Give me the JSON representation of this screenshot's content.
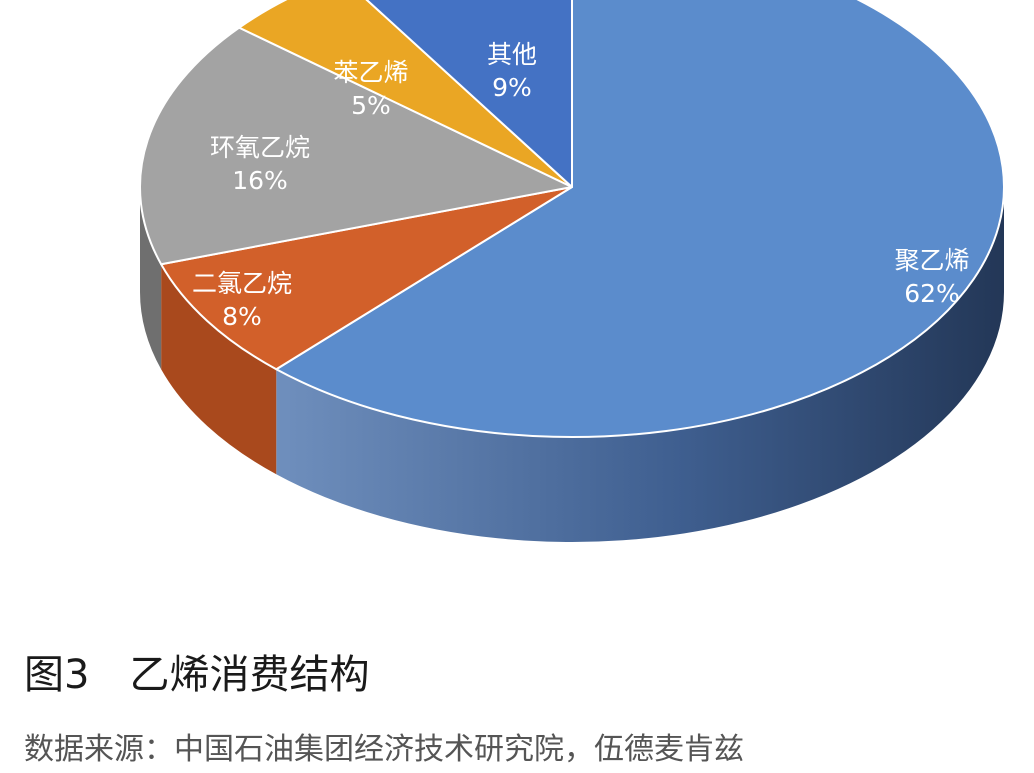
{
  "chart_data": {
    "type": "pie",
    "title": "",
    "categories": [
      "聚乙烯",
      "二氯乙烷",
      "环氧乙烷",
      "苯乙烯",
      "其他"
    ],
    "values": [
      62,
      8,
      16,
      5,
      9
    ],
    "value_labels": [
      "62%",
      "8%",
      "16%",
      "5%",
      "9%"
    ],
    "colors": [
      "#5b8ccc",
      "#d2602a",
      "#a3a3a3",
      "#eaa624",
      "#4472c4"
    ],
    "side_colors": [
      "#3d5f8f",
      "#a9491d",
      "#6f6f6f",
      "#b07b10",
      "#2f538f"
    ],
    "legend": "none",
    "style": "3d"
  },
  "caption": {
    "title": "图3　乙烯消费结构",
    "source": "数据来源：中国石油集团经济技术研究院，伍德麦肯兹"
  }
}
